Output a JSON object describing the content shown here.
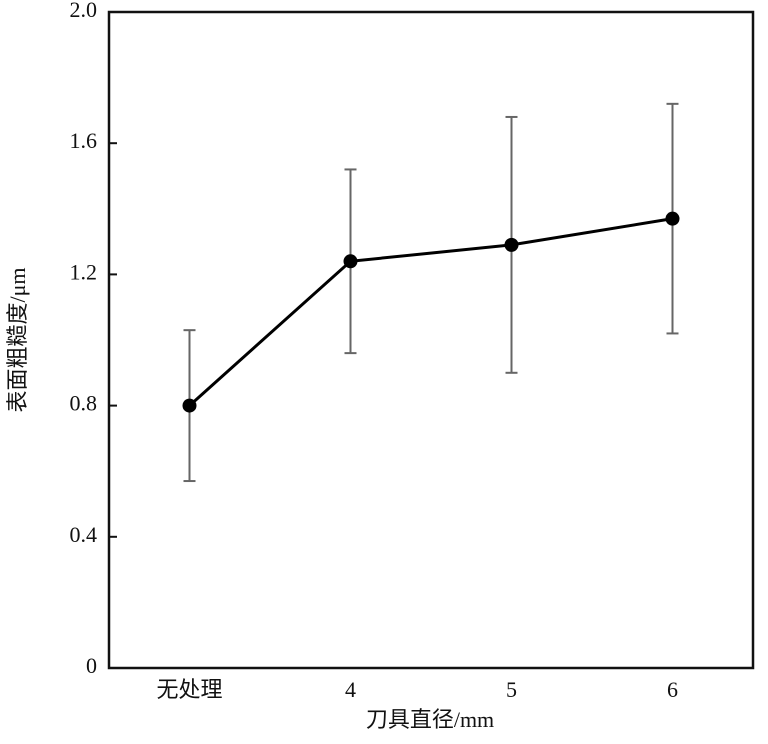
{
  "chart_data": {
    "type": "line",
    "x_label": "刀具直径/mm",
    "y_label": "表面粗糙度/μm",
    "categories": [
      "无处理",
      "4",
      "5",
      "6"
    ],
    "values": [
      0.8,
      1.24,
      1.29,
      1.37
    ],
    "errors": [
      0.23,
      0.28,
      0.39,
      0.35
    ],
    "color": "#000000",
    "error_color": "#666666",
    "ylim": [
      0,
      2
    ],
    "yticks": [
      0,
      0.4,
      0.8,
      1.2,
      1.6,
      {
        "value": 2,
        "label": "2.0"
      }
    ],
    "grid": false
  }
}
